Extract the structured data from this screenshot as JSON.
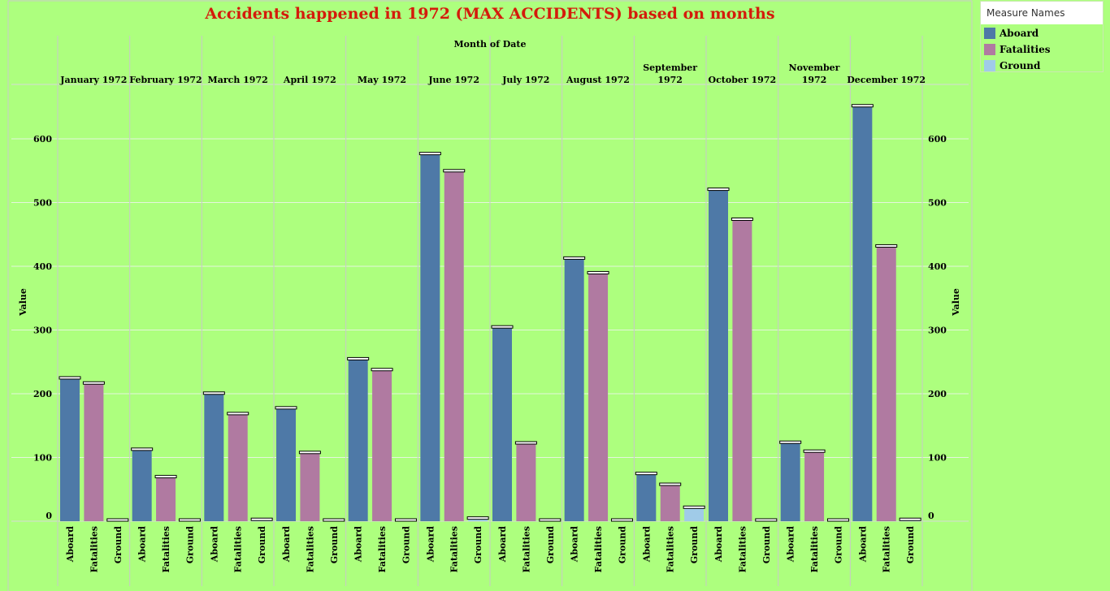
{
  "chart_data": {
    "type": "bar",
    "title": "Accidents happened in 1972 (MAX ACCIDENTS) based on months",
    "column_header": "Month of Date",
    "ylabel": "Value",
    "ylabel_right": "Value",
    "ylim": [
      0,
      680
    ],
    "yticks": [
      "0",
      "100",
      "200",
      "300",
      "400",
      "500",
      "600"
    ],
    "tick_values": [
      0,
      100,
      200,
      300,
      400,
      500,
      600
    ],
    "months": [
      [
        "January 1972"
      ],
      [
        "February 1972"
      ],
      [
        "March 1972"
      ],
      [
        "April 1972"
      ],
      [
        "May 1972"
      ],
      [
        "June 1972"
      ],
      [
        "July 1972"
      ],
      [
        "August 1972"
      ],
      [
        "September",
        "1972"
      ],
      [
        "October 1972"
      ],
      [
        "November",
        "1972"
      ],
      [
        "December 1972"
      ]
    ],
    "measures": [
      "Aboard",
      "Fatalities",
      "Ground"
    ],
    "series": [
      {
        "name": "Aboard",
        "color": "#4e79a7",
        "values": [
          223,
          111,
          199,
          176,
          253,
          575,
          303,
          411,
          73,
          519,
          122,
          650
        ]
      },
      {
        "name": "Fatalities",
        "color": "#b07aa1",
        "values": [
          215,
          68,
          167,
          106,
          236,
          548,
          121,
          388,
          56,
          472,
          108,
          430
        ]
      },
      {
        "name": "Ground",
        "color": "#a0cbe8",
        "values": [
          0,
          0,
          1,
          0,
          0,
          3,
          0,
          0,
          20,
          0,
          0,
          1
        ]
      }
    ],
    "grid": true,
    "legend_position": "right"
  },
  "legend": {
    "title": "Measure Names",
    "items": [
      {
        "label": "Aboard",
        "color": "#4e79a7"
      },
      {
        "label": "Fatalities",
        "color": "#b07aa1"
      },
      {
        "label": "Ground",
        "color": "#a0cbe8"
      }
    ]
  }
}
